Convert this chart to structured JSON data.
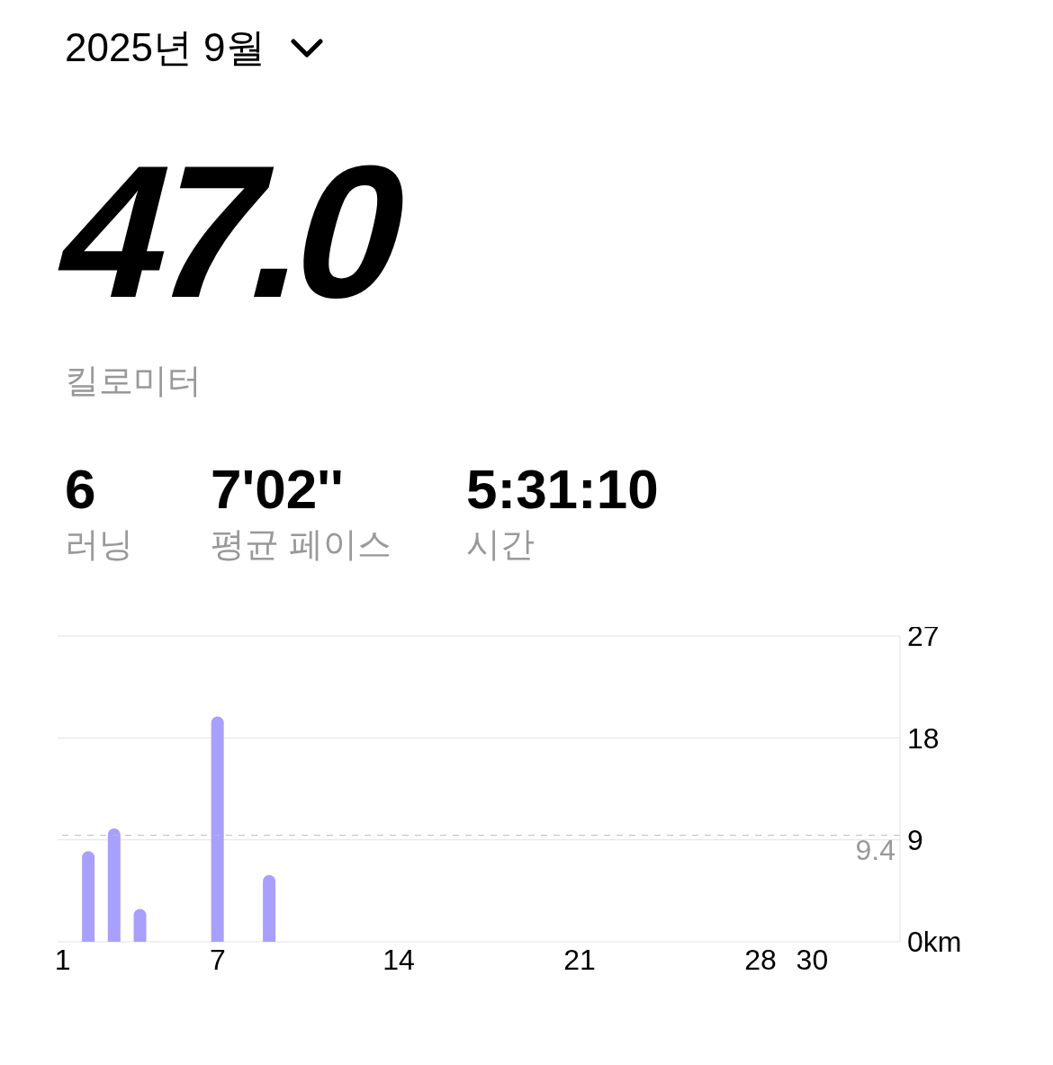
{
  "chart_data": {
    "type": "bar",
    "title": "2025년 9월",
    "annotations": [
      "47.0",
      "킬로미터",
      "6",
      "러닝",
      "7'02''",
      "평균 페이스",
      "5:31:10",
      "시간"
    ],
    "x": [
      2,
      3,
      4,
      7,
      9
    ],
    "values": [
      8.0,
      10.0,
      2.9,
      19.9,
      5.9
    ],
    "color": "#a8a0fc",
    "xlim": [
      0.8,
      33.4
    ],
    "xticks": [
      1,
      7,
      14,
      21,
      28,
      30
    ],
    "ylim": [
      0,
      27
    ],
    "yticks": [
      {
        "value": 0,
        "label": "0km"
      },
      9,
      18,
      27
    ],
    "ref_lines": [
      {
        "axis": "y",
        "value": 9.4,
        "label": "9.4",
        "color": "#bbbbbb",
        "line_style": "dashed"
      }
    ],
    "grid": "y"
  }
}
